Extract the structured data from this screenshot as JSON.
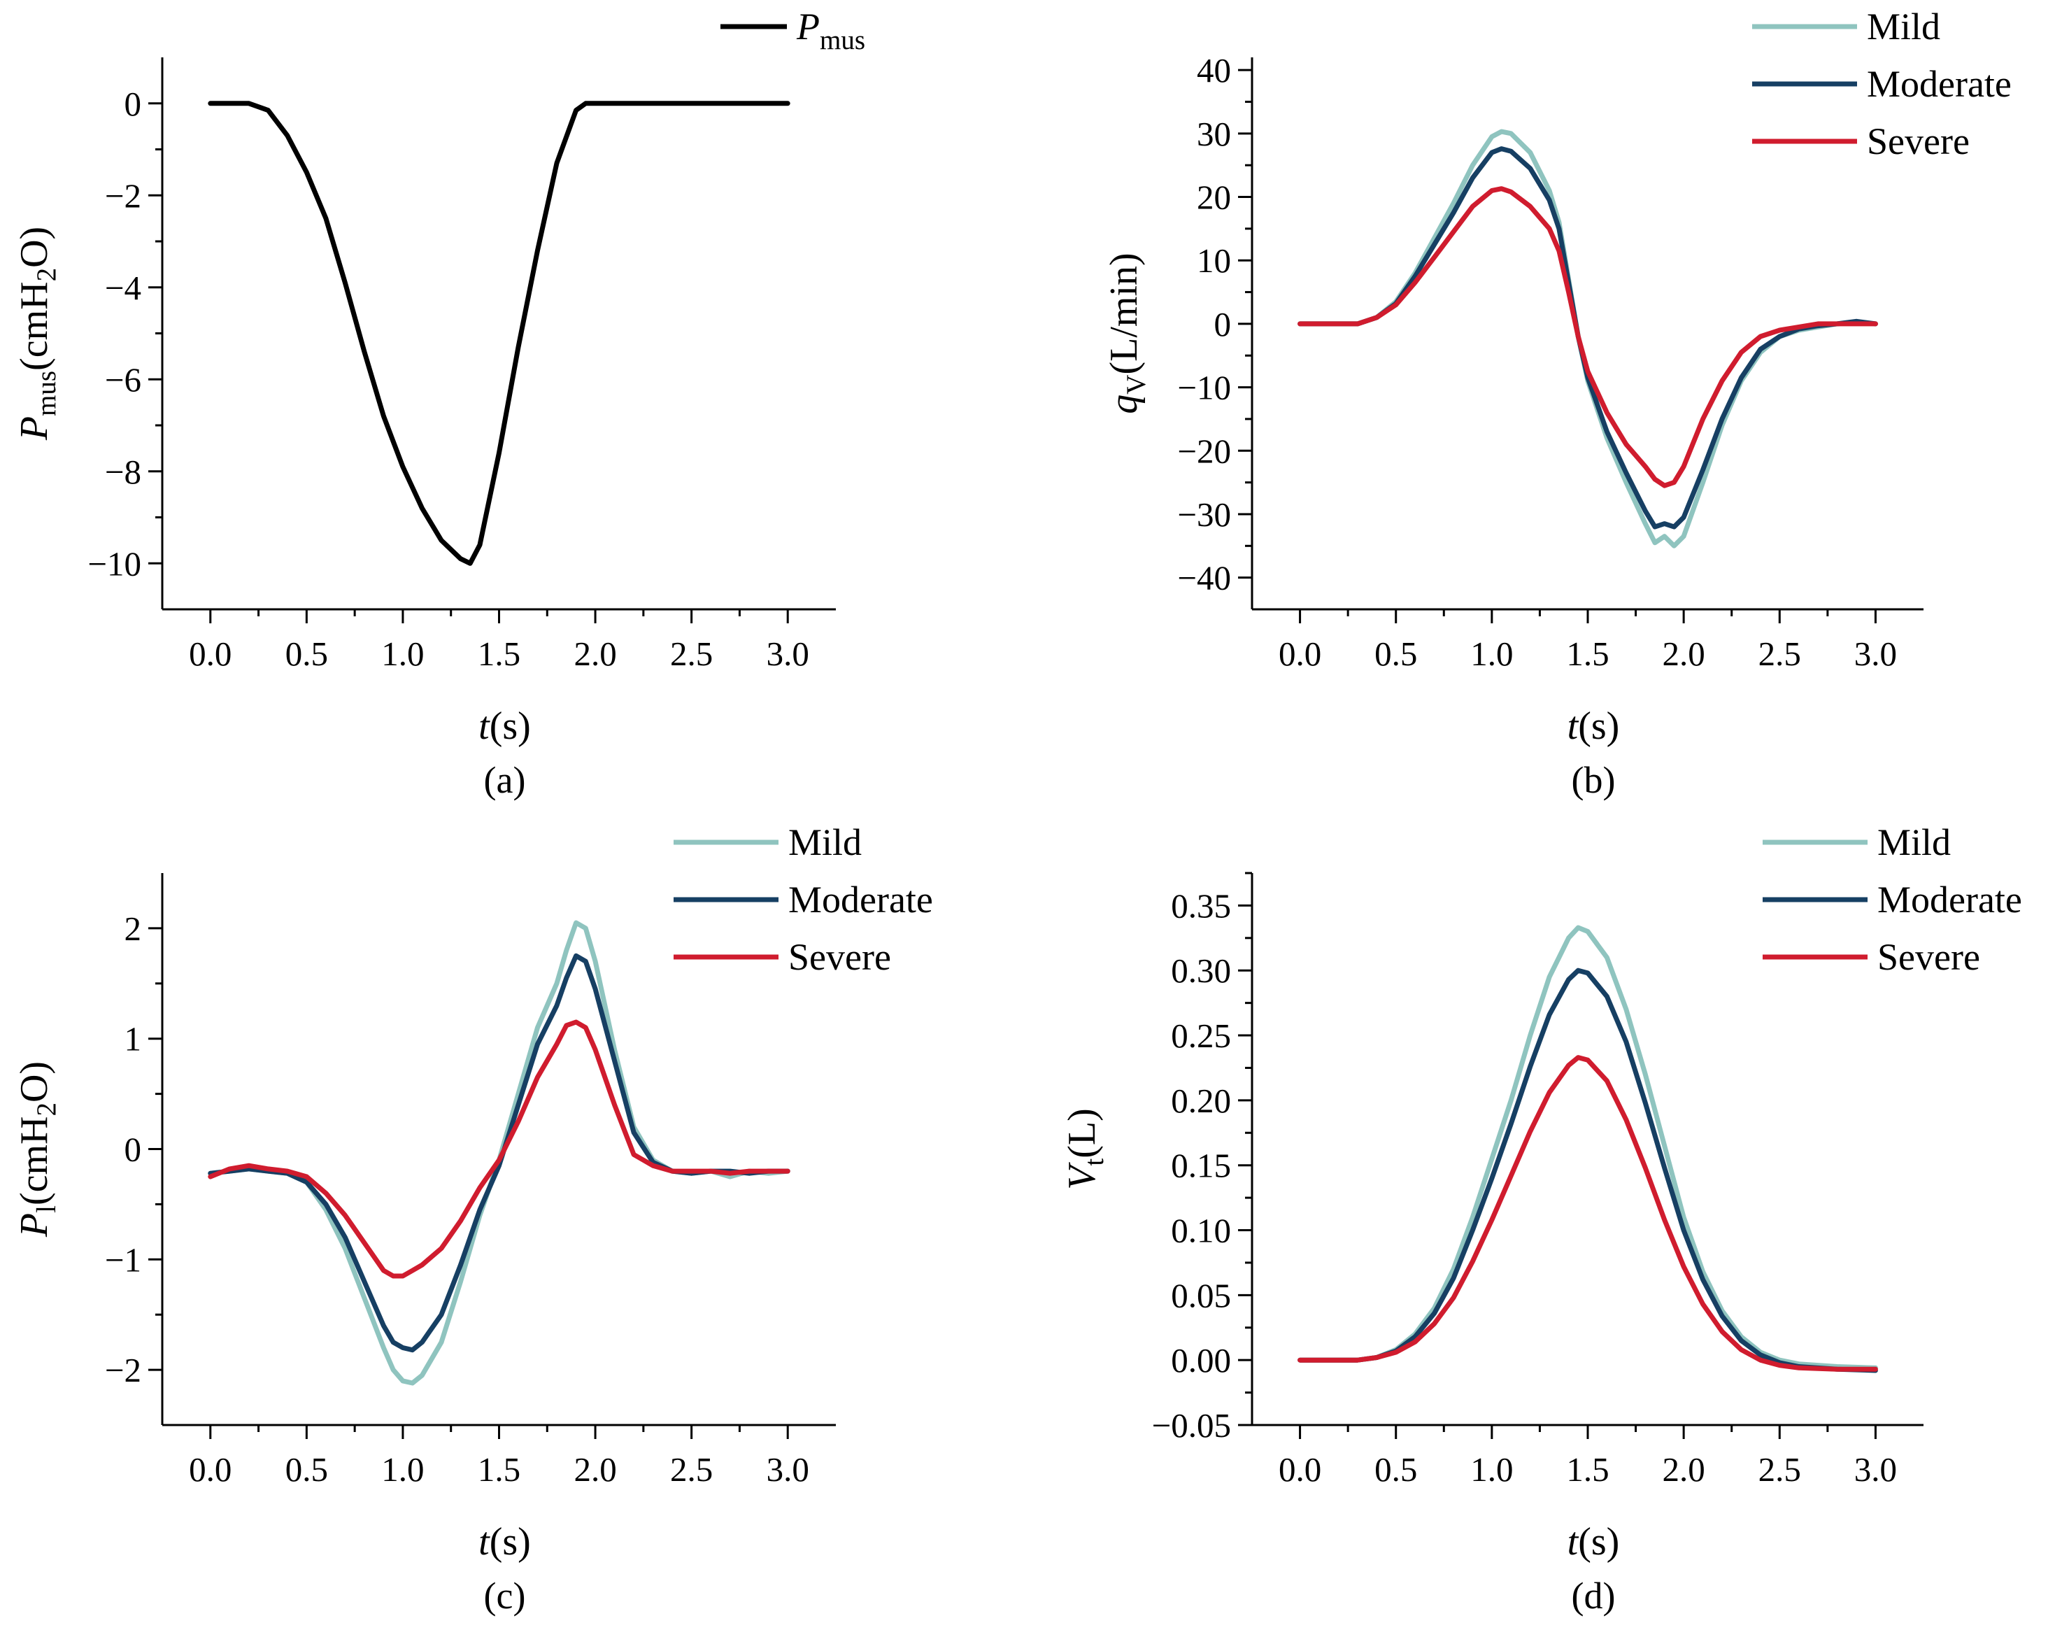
{
  "colors": {
    "mild": "#8fc4bf",
    "moderate": "#163f63",
    "severe": "#d01c2e",
    "pmus": "#000000",
    "axis": "#000000"
  },
  "chart_data": [
    {
      "panel": "(a)",
      "type": "line",
      "xlabel": {
        "italic": "t",
        "rest": "(s)"
      },
      "ylabel": {
        "italic": "P",
        "sub": "mus",
        "rest": "(cmH",
        "sub2": "2",
        "rest2": "O)"
      },
      "xlim": [
        -0.25,
        3.25
      ],
      "ylim": [
        -11.0,
        1.0
      ],
      "xticks": [
        0.0,
        0.5,
        1.0,
        1.5,
        2.0,
        2.5,
        3.0
      ],
      "xtick_labels": [
        "0.0",
        "0.5",
        "1.0",
        "1.5",
        "2.0",
        "2.5",
        "3.0"
      ],
      "yticks": [
        -10,
        -8,
        -6,
        -4,
        -2,
        0
      ],
      "ytick_labels": [
        "−10",
        "−8",
        "−6",
        "−4",
        "−2",
        "0"
      ],
      "legend": "top-right",
      "series": [
        {
          "name": "Pmus",
          "legend_italic": "P",
          "legend_sub": "mus",
          "color_key": "pmus",
          "x": [
            0.0,
            0.2,
            0.3,
            0.4,
            0.5,
            0.6,
            0.7,
            0.8,
            0.9,
            1.0,
            1.1,
            1.2,
            1.3,
            1.35,
            1.4,
            1.5,
            1.6,
            1.7,
            1.8,
            1.9,
            1.95,
            2.0,
            3.0
          ],
          "values": [
            0.0,
            0.0,
            -0.15,
            -0.7,
            -1.5,
            -2.5,
            -3.9,
            -5.4,
            -6.8,
            -7.9,
            -8.8,
            -9.5,
            -9.9,
            -10.0,
            -9.6,
            -7.6,
            -5.3,
            -3.2,
            -1.3,
            -0.15,
            0.0,
            0.0,
            0.0
          ]
        }
      ]
    },
    {
      "panel": "(b)",
      "type": "line",
      "xlabel": {
        "italic": "t",
        "rest": "(s)"
      },
      "ylabel": {
        "italic": "q",
        "sub": "V",
        "rest": "(L/min)"
      },
      "xlim": [
        -0.25,
        3.25
      ],
      "ylim": [
        -45,
        42
      ],
      "xticks": [
        0.0,
        0.5,
        1.0,
        1.5,
        2.0,
        2.5,
        3.0
      ],
      "xtick_labels": [
        "0.0",
        "0.5",
        "1.0",
        "1.5",
        "2.0",
        "2.5",
        "3.0"
      ],
      "yticks": [
        -40,
        -30,
        -20,
        -10,
        0,
        10,
        20,
        30,
        40
      ],
      "ytick_labels": [
        "−40",
        "−30",
        "−20",
        "−10",
        "0",
        "10",
        "20",
        "30",
        "40"
      ],
      "legend": "top-right",
      "series": [
        {
          "name": "Mild",
          "color_key": "mild",
          "x": [
            0.0,
            0.3,
            0.4,
            0.5,
            0.6,
            0.7,
            0.8,
            0.9,
            1.0,
            1.05,
            1.1,
            1.2,
            1.3,
            1.35,
            1.4,
            1.45,
            1.5,
            1.6,
            1.7,
            1.8,
            1.85,
            1.9,
            1.95,
            2.0,
            2.1,
            2.2,
            2.3,
            2.4,
            2.5,
            2.6,
            2.7,
            2.8,
            2.9,
            3.0
          ],
          "values": [
            0.0,
            0.0,
            1.0,
            3.5,
            8.0,
            13.5,
            19.0,
            25.0,
            29.5,
            30.3,
            30.0,
            27.0,
            21.0,
            16.0,
            7.0,
            -2.0,
            -9.0,
            -18.0,
            -25.0,
            -31.5,
            -34.5,
            -33.5,
            -35.0,
            -33.5,
            -25.0,
            -16.0,
            -9.0,
            -4.5,
            -2.0,
            -1.0,
            -0.5,
            0.0,
            0.2,
            0.0
          ]
        },
        {
          "name": "Moderate",
          "color_key": "moderate",
          "x": [
            0.0,
            0.3,
            0.4,
            0.5,
            0.6,
            0.7,
            0.8,
            0.9,
            1.0,
            1.05,
            1.1,
            1.2,
            1.3,
            1.35,
            1.4,
            1.45,
            1.5,
            1.6,
            1.7,
            1.8,
            1.85,
            1.9,
            1.95,
            2.0,
            2.1,
            2.2,
            2.3,
            2.4,
            2.5,
            2.6,
            2.7,
            2.8,
            2.9,
            3.0
          ],
          "values": [
            0.0,
            0.0,
            1.0,
            3.2,
            7.5,
            12.5,
            17.5,
            23.0,
            27.0,
            27.6,
            27.2,
            24.5,
            19.5,
            15.0,
            6.5,
            -2.0,
            -8.5,
            -17.0,
            -23.5,
            -29.5,
            -32.0,
            -31.5,
            -32.0,
            -30.5,
            -23.0,
            -15.0,
            -8.5,
            -4.0,
            -2.0,
            -0.8,
            -0.3,
            0.0,
            0.4,
            0.0
          ]
        },
        {
          "name": "Severe",
          "color_key": "severe",
          "x": [
            0.0,
            0.3,
            0.4,
            0.5,
            0.6,
            0.7,
            0.8,
            0.9,
            1.0,
            1.05,
            1.1,
            1.2,
            1.3,
            1.35,
            1.4,
            1.45,
            1.5,
            1.6,
            1.7,
            1.8,
            1.85,
            1.9,
            1.95,
            2.0,
            2.1,
            2.2,
            2.3,
            2.4,
            2.5,
            2.6,
            2.7,
            2.8,
            2.9,
            3.0
          ],
          "values": [
            0.0,
            0.0,
            1.0,
            3.0,
            6.5,
            10.5,
            14.5,
            18.5,
            21.0,
            21.3,
            20.8,
            18.5,
            15.0,
            11.5,
            5.0,
            -2.0,
            -7.5,
            -14.0,
            -19.0,
            -22.5,
            -24.5,
            -25.5,
            -25.0,
            -22.5,
            -15.0,
            -9.0,
            -4.5,
            -2.0,
            -1.0,
            -0.5,
            0.0,
            0.0,
            0.0,
            0.0
          ]
        }
      ]
    },
    {
      "panel": "(c)",
      "type": "line",
      "xlabel": {
        "italic": "t",
        "rest": "(s)"
      },
      "ylabel": {
        "italic": "P",
        "sub": "l",
        "rest": "(cmH",
        "sub2": "2",
        "rest2": "O)"
      },
      "xlim": [
        -0.25,
        3.25
      ],
      "ylim": [
        -2.5,
        2.5
      ],
      "xticks": [
        0.0,
        0.5,
        1.0,
        1.5,
        2.0,
        2.5,
        3.0
      ],
      "xtick_labels": [
        "0.0",
        "0.5",
        "1.0",
        "1.5",
        "2.0",
        "2.5",
        "3.0"
      ],
      "yticks": [
        -2,
        -1,
        0,
        1,
        2
      ],
      "ytick_labels": [
        "−2",
        "−1",
        "0",
        "1",
        "2"
      ],
      "legend": "top-right",
      "series": [
        {
          "name": "Mild",
          "color_key": "mild",
          "x": [
            0.0,
            0.1,
            0.2,
            0.3,
            0.4,
            0.5,
            0.6,
            0.7,
            0.8,
            0.9,
            0.95,
            1.0,
            1.05,
            1.1,
            1.2,
            1.3,
            1.4,
            1.5,
            1.6,
            1.7,
            1.8,
            1.85,
            1.9,
            1.95,
            2.0,
            2.1,
            2.2,
            2.3,
            2.4,
            2.5,
            2.6,
            2.7,
            2.8,
            2.9,
            3.0
          ],
          "values": [
            -0.22,
            -0.2,
            -0.18,
            -0.2,
            -0.22,
            -0.3,
            -0.55,
            -0.9,
            -1.35,
            -1.8,
            -2.0,
            -2.1,
            -2.12,
            -2.05,
            -1.75,
            -1.2,
            -0.6,
            -0.1,
            0.5,
            1.1,
            1.5,
            1.8,
            2.05,
            2.0,
            1.7,
            0.9,
            0.2,
            -0.1,
            -0.2,
            -0.22,
            -0.2,
            -0.25,
            -0.2,
            -0.22,
            -0.2
          ]
        },
        {
          "name": "Moderate",
          "color_key": "moderate",
          "x": [
            0.0,
            0.1,
            0.2,
            0.3,
            0.4,
            0.5,
            0.6,
            0.7,
            0.8,
            0.9,
            0.95,
            1.0,
            1.05,
            1.1,
            1.2,
            1.3,
            1.4,
            1.5,
            1.6,
            1.7,
            1.8,
            1.85,
            1.9,
            1.95,
            2.0,
            2.1,
            2.2,
            2.3,
            2.4,
            2.5,
            2.6,
            2.7,
            2.8,
            2.9,
            3.0
          ],
          "values": [
            -0.22,
            -0.2,
            -0.18,
            -0.2,
            -0.22,
            -0.3,
            -0.5,
            -0.8,
            -1.2,
            -1.6,
            -1.75,
            -1.8,
            -1.82,
            -1.75,
            -1.5,
            -1.05,
            -0.55,
            -0.15,
            0.4,
            0.95,
            1.3,
            1.55,
            1.75,
            1.7,
            1.45,
            0.8,
            0.15,
            -0.12,
            -0.2,
            -0.22,
            -0.2,
            -0.2,
            -0.22,
            -0.2,
            -0.2
          ]
        },
        {
          "name": "Severe",
          "color_key": "severe",
          "x": [
            0.0,
            0.1,
            0.2,
            0.3,
            0.4,
            0.5,
            0.6,
            0.7,
            0.8,
            0.9,
            0.95,
            1.0,
            1.05,
            1.1,
            1.2,
            1.3,
            1.4,
            1.5,
            1.6,
            1.7,
            1.8,
            1.85,
            1.9,
            1.95,
            2.0,
            2.1,
            2.2,
            2.3,
            2.4,
            2.5,
            2.6,
            2.7,
            2.8,
            2.9,
            3.0
          ],
          "values": [
            -0.25,
            -0.18,
            -0.15,
            -0.18,
            -0.2,
            -0.25,
            -0.4,
            -0.6,
            -0.85,
            -1.1,
            -1.15,
            -1.15,
            -1.1,
            -1.05,
            -0.9,
            -0.65,
            -0.35,
            -0.1,
            0.25,
            0.65,
            0.95,
            1.12,
            1.15,
            1.1,
            0.9,
            0.4,
            -0.05,
            -0.15,
            -0.2,
            -0.2,
            -0.2,
            -0.22,
            -0.2,
            -0.2,
            -0.2
          ]
        }
      ]
    },
    {
      "panel": "(d)",
      "type": "line",
      "xlabel": {
        "italic": "t",
        "rest": "(s)"
      },
      "ylabel": {
        "italic": "V",
        "sub": "t",
        "rest": "(L)"
      },
      "xlim": [
        -0.25,
        3.25
      ],
      "ylim": [
        -0.05,
        0.375
      ],
      "xticks": [
        0.0,
        0.5,
        1.0,
        1.5,
        2.0,
        2.5,
        3.0
      ],
      "xtick_labels": [
        "0.0",
        "0.5",
        "1.0",
        "1.5",
        "2.0",
        "2.5",
        "3.0"
      ],
      "yticks": [
        -0.05,
        0.0,
        0.05,
        0.1,
        0.15,
        0.2,
        0.25,
        0.3,
        0.35
      ],
      "ytick_labels": [
        "−0.05",
        "0.00",
        "0.05",
        "0.10",
        "0.15",
        "0.20",
        "0.25",
        "0.30",
        "0.35"
      ],
      "legend": "top-right",
      "series": [
        {
          "name": "Mild",
          "color_key": "mild",
          "x": [
            0.0,
            0.3,
            0.4,
            0.5,
            0.6,
            0.7,
            0.8,
            0.9,
            1.0,
            1.1,
            1.2,
            1.3,
            1.4,
            1.45,
            1.5,
            1.6,
            1.7,
            1.8,
            1.9,
            2.0,
            2.1,
            2.2,
            2.3,
            2.4,
            2.5,
            2.6,
            2.8,
            3.0
          ],
          "values": [
            0.0,
            0.0,
            0.002,
            0.008,
            0.02,
            0.04,
            0.07,
            0.11,
            0.155,
            0.2,
            0.25,
            0.295,
            0.325,
            0.333,
            0.33,
            0.31,
            0.27,
            0.22,
            0.165,
            0.11,
            0.068,
            0.038,
            0.018,
            0.006,
            0.0,
            -0.003,
            -0.005,
            -0.006
          ]
        },
        {
          "name": "Moderate",
          "color_key": "moderate",
          "x": [
            0.0,
            0.3,
            0.4,
            0.5,
            0.6,
            0.7,
            0.8,
            0.9,
            1.0,
            1.1,
            1.2,
            1.3,
            1.4,
            1.45,
            1.5,
            1.6,
            1.7,
            1.8,
            1.9,
            2.0,
            2.1,
            2.2,
            2.3,
            2.4,
            2.5,
            2.6,
            2.8,
            3.0
          ],
          "values": [
            0.0,
            0.0,
            0.002,
            0.007,
            0.018,
            0.036,
            0.063,
            0.1,
            0.14,
            0.182,
            0.226,
            0.266,
            0.293,
            0.3,
            0.298,
            0.28,
            0.245,
            0.198,
            0.148,
            0.1,
            0.062,
            0.034,
            0.015,
            0.004,
            -0.002,
            -0.005,
            -0.007,
            -0.008
          ]
        },
        {
          "name": "Severe",
          "color_key": "severe",
          "x": [
            0.0,
            0.3,
            0.4,
            0.5,
            0.6,
            0.7,
            0.8,
            0.9,
            1.0,
            1.1,
            1.2,
            1.3,
            1.4,
            1.45,
            1.5,
            1.6,
            1.7,
            1.8,
            1.9,
            2.0,
            2.1,
            2.2,
            2.3,
            2.4,
            2.5,
            2.6,
            2.8,
            3.0
          ],
          "values": [
            0.0,
            0.0,
            0.002,
            0.006,
            0.014,
            0.028,
            0.048,
            0.076,
            0.108,
            0.142,
            0.176,
            0.206,
            0.227,
            0.233,
            0.231,
            0.215,
            0.185,
            0.148,
            0.108,
            0.072,
            0.043,
            0.022,
            0.008,
            0.0,
            -0.004,
            -0.006,
            -0.007,
            -0.007
          ]
        }
      ]
    }
  ]
}
